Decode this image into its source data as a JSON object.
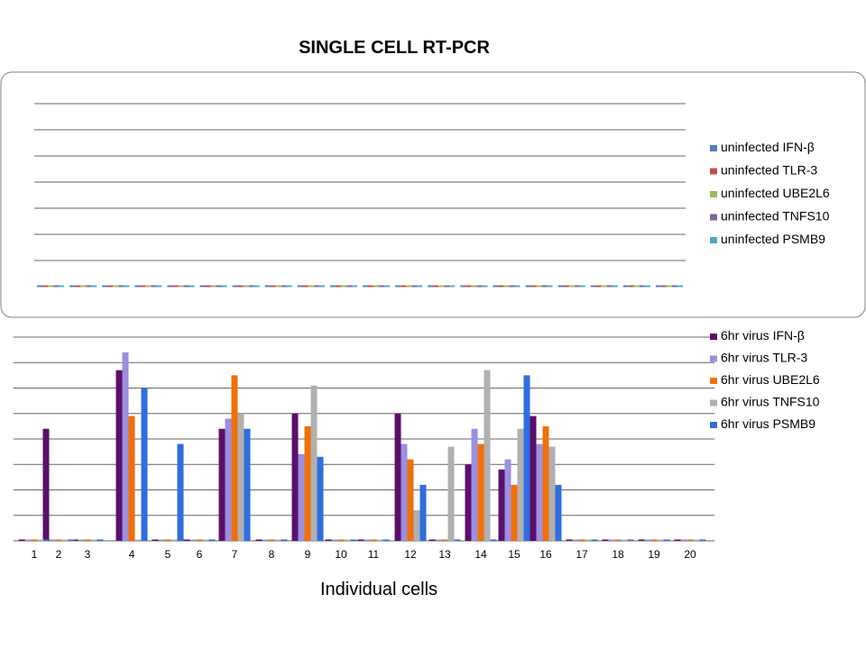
{
  "chart_data": {
    "title": "SINGLE CELL RT-PCR",
    "xlabel": "Individual cells",
    "charts": [
      {
        "type": "bar",
        "panel": "uninfected",
        "categories": [
          "1",
          "2",
          "3",
          "4",
          "5",
          "6",
          "7",
          "8",
          "9",
          "10",
          "11",
          "12",
          "13",
          "14",
          "15",
          "16",
          "17",
          "18",
          "19",
          "20"
        ],
        "series": [
          {
            "name": "uninfected IFN-β",
            "color": "#4f81bd",
            "values": [
              0,
              0,
              0,
              0,
              0,
              0,
              0,
              0,
              0,
              0,
              0,
              0,
              0,
              0,
              0,
              0,
              0,
              0,
              0,
              0
            ]
          },
          {
            "name": "uninfected TLR-3",
            "color": "#c0504d",
            "values": [
              0,
              0,
              0,
              0,
              0,
              0,
              0,
              0,
              0,
              0,
              0,
              0,
              0,
              0,
              0,
              0,
              0,
              0,
              0,
              0
            ]
          },
          {
            "name": "uninfected UBE2L6",
            "color": "#9bbb59",
            "values": [
              0,
              0,
              0,
              0,
              0,
              0,
              0,
              0,
              0,
              0,
              0,
              0,
              0,
              0,
              0,
              0,
              0,
              0,
              0,
              0
            ]
          },
          {
            "name": "uninfected TNFS10",
            "color": "#8064a2",
            "values": [
              0,
              0,
              0,
              0,
              0,
              0,
              0,
              0,
              0,
              0,
              0,
              0,
              0,
              0,
              0,
              0,
              0,
              0,
              0,
              0
            ]
          },
          {
            "name": "uninfected PSMB9",
            "color": "#4bacc6",
            "values": [
              0,
              0,
              0,
              0,
              0,
              0,
              0,
              0,
              0,
              0,
              0,
              0,
              0,
              0,
              0,
              0,
              0,
              0,
              0,
              0
            ]
          }
        ],
        "gridlines": 7,
        "legend": "right"
      },
      {
        "type": "bar",
        "panel": "6hr virus",
        "categories": [
          "1",
          "2",
          "3",
          "4",
          "5",
          "6",
          "7",
          "8",
          "9",
          "10",
          "11",
          "12",
          "13",
          "14",
          "15",
          "16",
          "17",
          "18",
          "19",
          "20"
        ],
        "series": [
          {
            "name": "6hr virus IFN-β",
            "color": "#5b0f6b",
            "values": [
              0,
              4.4,
              0,
              6.7,
              0,
              0,
              4.4,
              0,
              5.0,
              0,
              0,
              5.0,
              0,
              3.0,
              2.8,
              4.9,
              0,
              0,
              0,
              0
            ]
          },
          {
            "name": "6hr virus TLR-3",
            "color": "#9b8fe0",
            "values": [
              0,
              0,
              0,
              7.4,
              0,
              0,
              4.8,
              0,
              3.4,
              0,
              0,
              3.8,
              0,
              4.4,
              3.2,
              3.8,
              0,
              0,
              0,
              0
            ]
          },
          {
            "name": "6hr virus UBE2L6",
            "color": "#f0700a",
            "values": [
              0,
              0,
              0,
              4.9,
              0,
              0,
              6.5,
              0,
              4.5,
              0,
              0,
              3.2,
              0,
              3.8,
              2.2,
              4.5,
              0,
              0,
              0,
              0
            ]
          },
          {
            "name": "6hr virus TNFS10",
            "color": "#b0b0b0",
            "values": [
              0,
              0,
              0,
              0,
              0,
              0,
              5.0,
              0,
              6.1,
              0,
              0,
              1.2,
              3.7,
              6.7,
              4.4,
              3.7,
              0,
              0,
              0,
              0
            ]
          },
          {
            "name": "6hr virus PSMB9",
            "color": "#2f6de0",
            "values": [
              0,
              0,
              0,
              6.0,
              3.8,
              0,
              4.4,
              0,
              3.3,
              0,
              0,
              2.2,
              0,
              0,
              6.5,
              2.2,
              0,
              0,
              0,
              0
            ]
          }
        ],
        "ylim": [
          0,
          8
        ],
        "gridlines": 9,
        "legend": "right"
      }
    ]
  }
}
